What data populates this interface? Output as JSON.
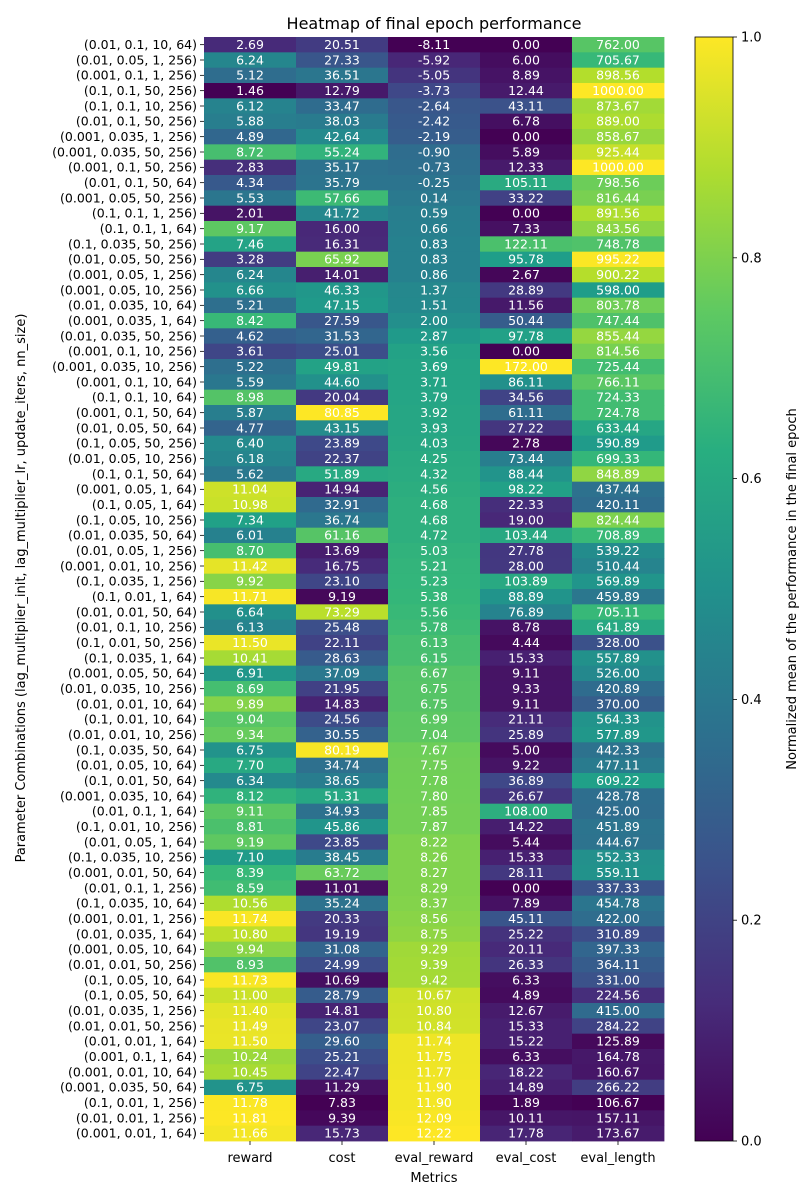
{
  "chart_data": {
    "type": "heatmap",
    "title": "Heatmap of final epoch performance",
    "xlabel": "Metrics",
    "ylabel": "Parameter Combinations (lag_multiplier_init, lag_multiplier_lr, update_iters, nn_size)",
    "colorbar_label": "Normalized mean of the performance in the final epoch",
    "colormap": "viridis",
    "clim": [
      0.0,
      1.0
    ],
    "colorbar_ticks": [
      "0.0",
      "0.2",
      "0.4",
      "0.6",
      "0.8",
      "1.0"
    ],
    "columns": [
      "reward",
      "cost",
      "eval_reward",
      "eval_cost",
      "eval_length"
    ],
    "rows": [
      {
        "label": "(0.01, 0.1, 10, 64)",
        "values": [
          2.69,
          20.51,
          -8.11,
          0.0,
          762.0
        ]
      },
      {
        "label": "(0.01, 0.05, 1, 256)",
        "values": [
          6.24,
          27.33,
          -5.92,
          6.0,
          705.67
        ]
      },
      {
        "label": "(0.001, 0.1, 1, 256)",
        "values": [
          5.12,
          36.51,
          -5.05,
          8.89,
          898.56
        ]
      },
      {
        "label": "(0.1, 0.1, 50, 256)",
        "values": [
          1.46,
          12.79,
          -3.73,
          12.44,
          1000.0
        ]
      },
      {
        "label": "(0.1, 0.1, 10, 256)",
        "values": [
          6.12,
          33.47,
          -2.64,
          43.11,
          873.67
        ]
      },
      {
        "label": "(0.01, 0.1, 50, 256)",
        "values": [
          5.88,
          38.03,
          -2.42,
          6.78,
          889.0
        ]
      },
      {
        "label": "(0.001, 0.035, 1, 256)",
        "values": [
          4.89,
          42.64,
          -2.19,
          0.0,
          858.67
        ]
      },
      {
        "label": "(0.001, 0.035, 50, 256)",
        "values": [
          8.72,
          55.24,
          -0.9,
          5.89,
          925.44
        ]
      },
      {
        "label": "(0.001, 0.1, 50, 256)",
        "values": [
          2.83,
          35.17,
          -0.73,
          12.33,
          1000.0
        ]
      },
      {
        "label": "(0.01, 0.1, 50, 64)",
        "values": [
          4.34,
          35.79,
          -0.25,
          105.11,
          798.56
        ]
      },
      {
        "label": "(0.001, 0.05, 50, 256)",
        "values": [
          5.53,
          57.66,
          0.14,
          33.22,
          816.44
        ]
      },
      {
        "label": "(0.1, 0.1, 1, 256)",
        "values": [
          2.01,
          41.72,
          0.59,
          0.0,
          891.56
        ]
      },
      {
        "label": "(0.1, 0.1, 1, 64)",
        "values": [
          9.17,
          16.0,
          0.66,
          7.33,
          843.56
        ]
      },
      {
        "label": "(0.1, 0.035, 50, 256)",
        "values": [
          7.46,
          16.31,
          0.83,
          122.11,
          748.78
        ]
      },
      {
        "label": "(0.01, 0.05, 50, 256)",
        "values": [
          3.28,
          65.92,
          0.83,
          95.78,
          995.22
        ]
      },
      {
        "label": "(0.001, 0.05, 1, 256)",
        "values": [
          6.24,
          14.01,
          0.86,
          2.67,
          900.22
        ]
      },
      {
        "label": "(0.001, 0.05, 10, 256)",
        "values": [
          6.66,
          46.33,
          1.37,
          28.89,
          598.0
        ]
      },
      {
        "label": "(0.01, 0.035, 10, 64)",
        "values": [
          5.21,
          47.15,
          1.51,
          11.56,
          803.78
        ]
      },
      {
        "label": "(0.001, 0.035, 1, 64)",
        "values": [
          8.42,
          27.59,
          2.0,
          50.44,
          747.44
        ]
      },
      {
        "label": "(0.01, 0.035, 50, 256)",
        "values": [
          4.62,
          31.53,
          2.87,
          97.78,
          855.44
        ]
      },
      {
        "label": "(0.001, 0.1, 10, 256)",
        "values": [
          3.61,
          25.01,
          3.56,
          0.0,
          814.56
        ]
      },
      {
        "label": "(0.001, 0.035, 10, 256)",
        "values": [
          5.22,
          49.81,
          3.69,
          172.0,
          725.44
        ]
      },
      {
        "label": "(0.001, 0.1, 10, 64)",
        "values": [
          5.59,
          44.6,
          3.71,
          86.11,
          766.11
        ]
      },
      {
        "label": "(0.1, 0.1, 10, 64)",
        "values": [
          8.98,
          20.04,
          3.79,
          34.56,
          724.33
        ]
      },
      {
        "label": "(0.001, 0.1, 50, 64)",
        "values": [
          5.87,
          80.85,
          3.92,
          61.11,
          724.78
        ]
      },
      {
        "label": "(0.01, 0.05, 50, 64)",
        "values": [
          4.77,
          43.15,
          3.93,
          27.22,
          633.44
        ]
      },
      {
        "label": "(0.1, 0.05, 50, 256)",
        "values": [
          6.4,
          23.89,
          4.03,
          2.78,
          590.89
        ]
      },
      {
        "label": "(0.01, 0.05, 10, 256)",
        "values": [
          6.18,
          22.37,
          4.25,
          73.44,
          699.33
        ]
      },
      {
        "label": "(0.1, 0.1, 50, 64)",
        "values": [
          5.62,
          51.89,
          4.32,
          88.44,
          848.89
        ]
      },
      {
        "label": "(0.001, 0.05, 1, 64)",
        "values": [
          11.04,
          14.94,
          4.56,
          98.22,
          437.44
        ]
      },
      {
        "label": "(0.1, 0.05, 1, 64)",
        "values": [
          10.98,
          32.91,
          4.68,
          22.33,
          420.11
        ]
      },
      {
        "label": "(0.1, 0.05, 10, 256)",
        "values": [
          7.34,
          36.74,
          4.68,
          19.0,
          824.44
        ]
      },
      {
        "label": "(0.01, 0.035, 50, 64)",
        "values": [
          6.01,
          61.16,
          4.72,
          103.44,
          708.89
        ]
      },
      {
        "label": "(0.01, 0.05, 1, 256)",
        "values": [
          8.7,
          13.69,
          5.03,
          27.78,
          539.22
        ]
      },
      {
        "label": "(0.001, 0.01, 10, 256)",
        "values": [
          11.42,
          16.75,
          5.21,
          28.0,
          510.44
        ]
      },
      {
        "label": "(0.1, 0.035, 1, 256)",
        "values": [
          9.92,
          23.1,
          5.23,
          103.89,
          569.89
        ]
      },
      {
        "label": "(0.1, 0.01, 1, 64)",
        "values": [
          11.71,
          9.19,
          5.38,
          88.89,
          459.89
        ]
      },
      {
        "label": "(0.01, 0.01, 50, 64)",
        "values": [
          6.64,
          73.29,
          5.56,
          76.89,
          705.11
        ]
      },
      {
        "label": "(0.01, 0.1, 10, 256)",
        "values": [
          6.13,
          25.48,
          5.78,
          8.78,
          641.89
        ]
      },
      {
        "label": "(0.1, 0.01, 50, 256)",
        "values": [
          11.5,
          22.11,
          6.13,
          4.44,
          328.0
        ]
      },
      {
        "label": "(0.1, 0.035, 1, 64)",
        "values": [
          10.41,
          28.63,
          6.15,
          15.33,
          557.89
        ]
      },
      {
        "label": "(0.001, 0.05, 50, 64)",
        "values": [
          6.91,
          37.09,
          6.67,
          9.11,
          526.0
        ]
      },
      {
        "label": "(0.01, 0.035, 10, 256)",
        "values": [
          8.69,
          21.95,
          6.75,
          9.33,
          420.89
        ]
      },
      {
        "label": "(0.01, 0.01, 10, 64)",
        "values": [
          9.89,
          14.83,
          6.75,
          9.11,
          370.0
        ]
      },
      {
        "label": "(0.1, 0.01, 10, 64)",
        "values": [
          9.04,
          24.56,
          6.99,
          21.11,
          564.33
        ]
      },
      {
        "label": "(0.01, 0.01, 10, 256)",
        "values": [
          9.34,
          30.55,
          7.04,
          25.89,
          577.89
        ]
      },
      {
        "label": "(0.1, 0.035, 50, 64)",
        "values": [
          6.75,
          80.19,
          7.67,
          5.0,
          442.33
        ]
      },
      {
        "label": "(0.01, 0.05, 10, 64)",
        "values": [
          7.7,
          34.74,
          7.75,
          9.22,
          477.11
        ]
      },
      {
        "label": "(0.1, 0.01, 50, 64)",
        "values": [
          6.34,
          38.65,
          7.78,
          36.89,
          609.22
        ]
      },
      {
        "label": "(0.001, 0.035, 10, 64)",
        "values": [
          8.12,
          51.31,
          7.8,
          26.67,
          428.78
        ]
      },
      {
        "label": "(0.01, 0.1, 1, 64)",
        "values": [
          9.11,
          34.93,
          7.85,
          108.0,
          425.0
        ]
      },
      {
        "label": "(0.1, 0.01, 10, 256)",
        "values": [
          8.81,
          45.86,
          7.87,
          14.22,
          451.89
        ]
      },
      {
        "label": "(0.01, 0.05, 1, 64)",
        "values": [
          9.19,
          23.85,
          8.22,
          5.44,
          444.67
        ]
      },
      {
        "label": "(0.1, 0.035, 10, 256)",
        "values": [
          7.1,
          38.45,
          8.26,
          15.33,
          552.33
        ]
      },
      {
        "label": "(0.001, 0.01, 50, 64)",
        "values": [
          8.39,
          63.72,
          8.27,
          28.11,
          559.11
        ]
      },
      {
        "label": "(0.01, 0.1, 1, 256)",
        "values": [
          8.59,
          11.01,
          8.29,
          0.0,
          337.33
        ]
      },
      {
        "label": "(0.1, 0.035, 10, 64)",
        "values": [
          10.56,
          35.24,
          8.37,
          7.89,
          454.78
        ]
      },
      {
        "label": "(0.001, 0.01, 1, 256)",
        "values": [
          11.74,
          20.33,
          8.56,
          45.11,
          422.0
        ]
      },
      {
        "label": "(0.01, 0.035, 1, 64)",
        "values": [
          10.8,
          19.19,
          8.75,
          25.22,
          310.89
        ]
      },
      {
        "label": "(0.001, 0.05, 10, 64)",
        "values": [
          9.94,
          31.08,
          9.29,
          20.11,
          397.33
        ]
      },
      {
        "label": "(0.01, 0.01, 50, 256)",
        "values": [
          8.93,
          24.99,
          9.39,
          26.33,
          364.11
        ]
      },
      {
        "label": "(0.1, 0.05, 10, 64)",
        "values": [
          11.73,
          10.69,
          9.42,
          6.33,
          331.0
        ]
      },
      {
        "label": "(0.1, 0.05, 50, 64)",
        "values": [
          11.0,
          28.79,
          10.67,
          4.89,
          224.56
        ]
      },
      {
        "label": "(0.01, 0.035, 1, 256)",
        "values": [
          11.4,
          14.81,
          10.8,
          12.67,
          415.0
        ]
      },
      {
        "label": "(0.01, 0.01, 50, 256)",
        "values": [
          11.49,
          23.07,
          10.84,
          15.33,
          284.22
        ]
      },
      {
        "label": "(0.01, 0.01, 1, 64)",
        "values": [
          11.5,
          29.6,
          11.74,
          15.22,
          125.89
        ]
      },
      {
        "label": "(0.001, 0.1, 1, 64)",
        "values": [
          10.24,
          25.21,
          11.75,
          6.33,
          164.78
        ]
      },
      {
        "label": "(0.001, 0.01, 10, 64)",
        "values": [
          10.45,
          22.47,
          11.77,
          18.22,
          160.67
        ]
      },
      {
        "label": "(0.001, 0.035, 50, 64)",
        "values": [
          6.75,
          11.29,
          11.9,
          14.89,
          266.22
        ]
      },
      {
        "label": "(0.1, 0.01, 1, 256)",
        "values": [
          11.78,
          7.83,
          11.9,
          1.89,
          106.67
        ]
      },
      {
        "label": "(0.01, 0.01, 1, 256)",
        "values": [
          11.81,
          9.39,
          12.09,
          10.11,
          157.11
        ]
      },
      {
        "label": "(0.001, 0.01, 1, 64)",
        "values": [
          11.66,
          15.73,
          12.22,
          17.78,
          173.67
        ]
      }
    ]
  }
}
